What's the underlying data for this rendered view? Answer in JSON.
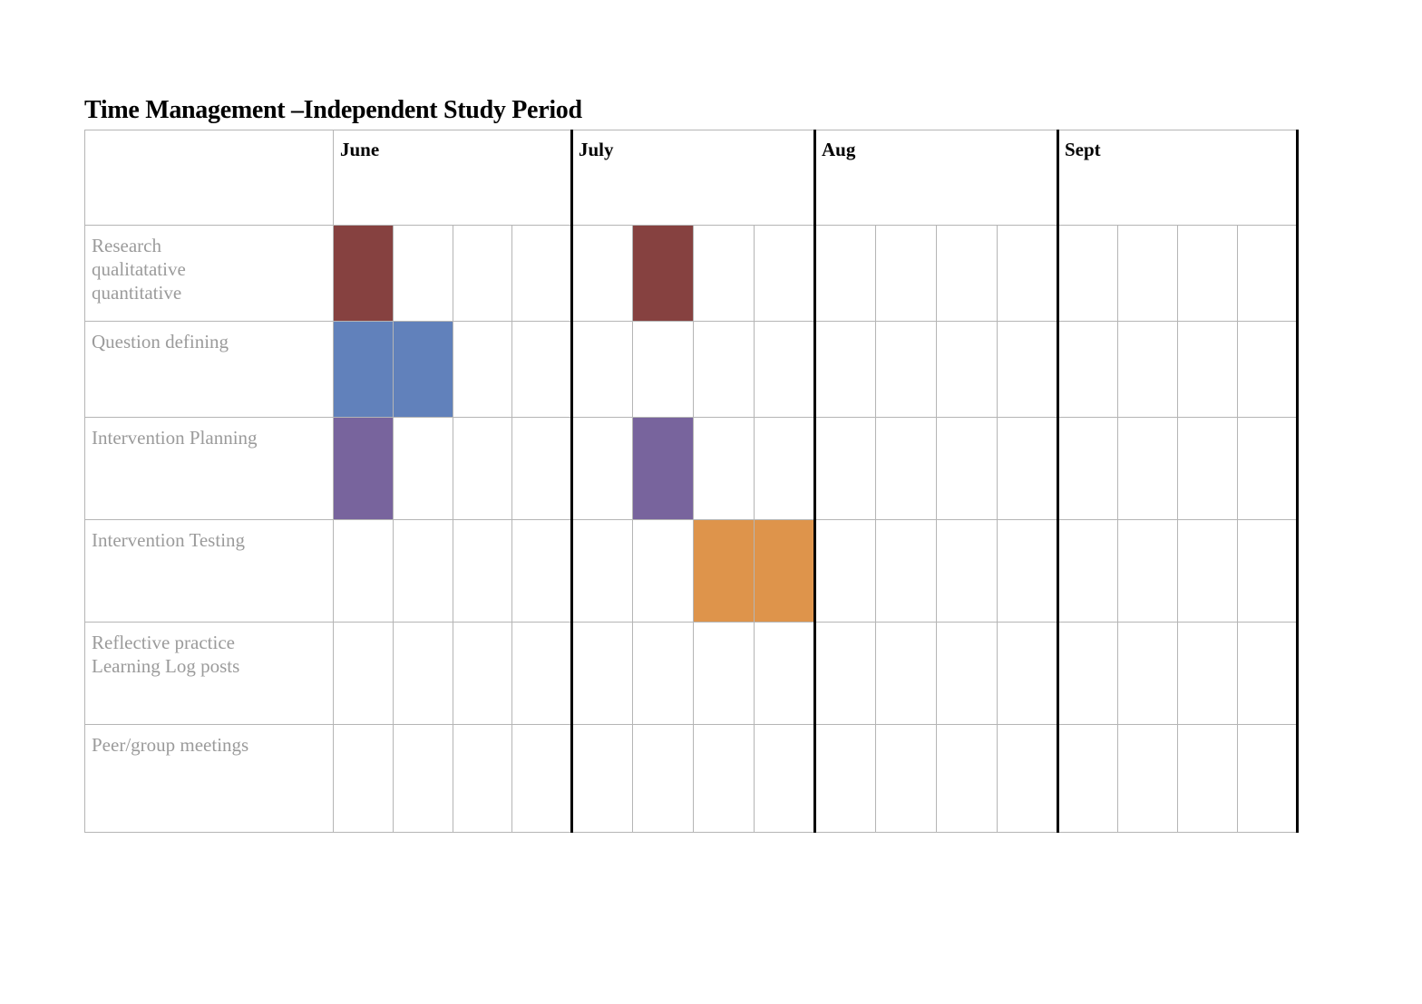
{
  "title": "Time Management –Independent Study Period",
  "months": [
    {
      "label": "June"
    },
    {
      "label": "July"
    },
    {
      "label": "Aug"
    },
    {
      "label": "Sept"
    }
  ],
  "weeks_per_month": 4,
  "tasks": [
    {
      "label": "Research\nqualitatative\nquantitative",
      "filled_weeks": [
        0,
        5
      ],
      "color": "#864140"
    },
    {
      "label": "Question defining",
      "filled_weeks": [
        0,
        1
      ],
      "color": "#6181bb"
    },
    {
      "label": "Intervention Planning",
      "filled_weeks": [
        0,
        5
      ],
      "color": "#78649d"
    },
    {
      "label": "Intervention Testing",
      "filled_weeks": [
        6,
        7
      ],
      "color": "#de944b"
    },
    {
      "label": "Reflective practice\nLearning Log posts",
      "filled_weeks": [],
      "color": ""
    },
    {
      "label": "Peer/group meetings",
      "filled_weeks": [],
      "color": ""
    }
  ],
  "colors": {
    "grid_line": "#b5b5b5",
    "month_divider": "#000000",
    "task_text": "#9b9b9b"
  }
}
